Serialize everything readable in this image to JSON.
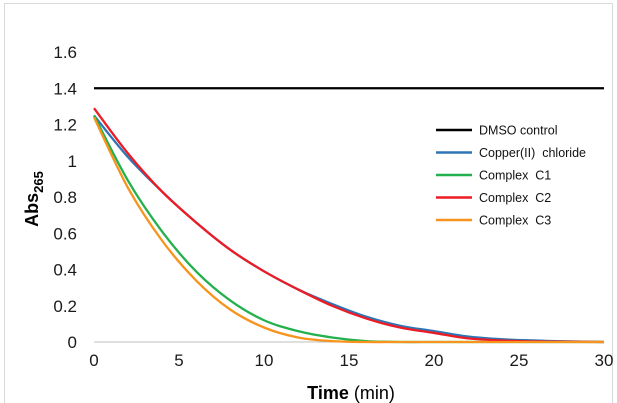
{
  "chart_data": {
    "type": "line",
    "xlabel_bold": "Time",
    "xlabel_unit": "(min)",
    "ylabel_main": "Abs",
    "ylabel_sub": "265",
    "xlim": [
      0,
      30
    ],
    "ylim": [
      0,
      1.6
    ],
    "x_ticks": [
      "0",
      "5",
      "10",
      "15",
      "20",
      "25",
      "30"
    ],
    "y_ticks": [
      "0",
      "0.2",
      "0.4",
      "0.6",
      "0.8",
      "1",
      "1.2",
      "1.4",
      "1.6"
    ],
    "grid": false,
    "legend_position": "right",
    "x": [
      0,
      2,
      4,
      6,
      8,
      10,
      12,
      14,
      16,
      18,
      20,
      22,
      24,
      26,
      28,
      30
    ],
    "series": [
      {
        "name": "DMSO control",
        "color": "#000000",
        "values": [
          1.4,
          1.4,
          1.4,
          1.4,
          1.4,
          1.4,
          1.4,
          1.4,
          1.4,
          1.4,
          1.4,
          1.4,
          1.4,
          1.4,
          1.4,
          1.4
        ]
      },
      {
        "name": "Copper(II)  chloride",
        "color": "#2e75b6",
        "values": [
          1.25,
          1.02,
          0.83,
          0.66,
          0.51,
          0.39,
          0.29,
          0.21,
          0.14,
          0.09,
          0.06,
          0.03,
          0.015,
          0.008,
          0.003,
          0.0
        ]
      },
      {
        "name": "Complex  C1",
        "color": "#22b14c",
        "values": [
          1.25,
          0.89,
          0.61,
          0.39,
          0.23,
          0.12,
          0.06,
          0.025,
          0.005,
          0.0,
          0.0,
          0.0,
          0.0,
          0.0,
          0.0,
          0.0
        ]
      },
      {
        "name": "Complex  C2",
        "color": "#ed1c24",
        "values": [
          1.29,
          1.04,
          0.83,
          0.66,
          0.51,
          0.39,
          0.29,
          0.2,
          0.13,
          0.08,
          0.05,
          0.02,
          0.008,
          0.003,
          0.001,
          0.0
        ]
      },
      {
        "name": "Complex  C3",
        "color": "#f7941d",
        "values": [
          1.24,
          0.85,
          0.56,
          0.34,
          0.18,
          0.08,
          0.025,
          0.005,
          0.0,
          0.0,
          0.0,
          0.0,
          0.0,
          0.0,
          0.0,
          0.0
        ]
      }
    ]
  }
}
